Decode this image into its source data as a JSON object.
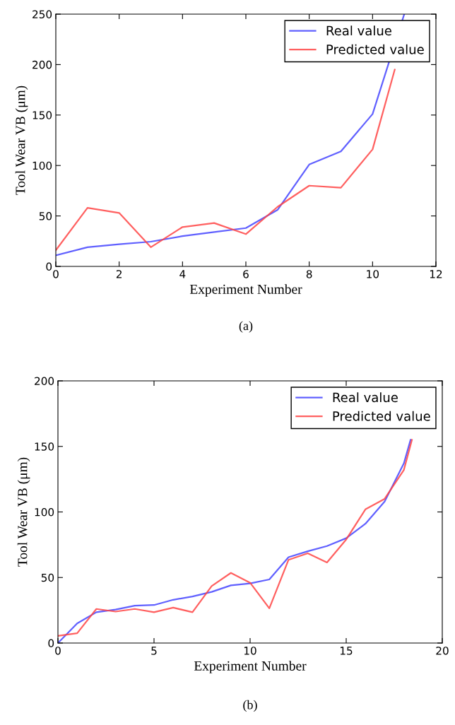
{
  "chart_data": [
    {
      "type": "line",
      "xlabel": "Experiment Number",
      "ylabel": "Tool Wear VB (μm)",
      "x": [
        0,
        1,
        2,
        3,
        4,
        5,
        6,
        7,
        8,
        9,
        10,
        11
      ],
      "series": [
        {
          "name": "Real value",
          "color": "#4444ff",
          "values": [
            11,
            19,
            22,
            24.5,
            30,
            34,
            38,
            56,
            101,
            114,
            151,
            250
          ]
        },
        {
          "name": "Predicted value",
          "color": "#ff4444",
          "x": [
            0,
            1,
            2,
            3,
            4,
            5,
            6,
            7,
            8,
            9,
            10,
            10.7
          ],
          "values": [
            16,
            58,
            53,
            19,
            39,
            43,
            32,
            59,
            80,
            78,
            116,
            195
          ]
        }
      ],
      "xlim": [
        0,
        12
      ],
      "xticks": [
        0,
        2,
        4,
        6,
        8,
        10,
        12
      ],
      "ylim": [
        0,
        250
      ],
      "yticks": [
        0,
        50,
        100,
        150,
        200,
        250
      ],
      "grid": false,
      "legend": "top right",
      "line_style": "solid",
      "marker": "none",
      "annotations": [
        "(a)"
      ]
    },
    {
      "type": "line",
      "xlabel": "Experiment Number",
      "ylabel": "Tool Wear VB (μm)",
      "series": [
        {
          "name": "Real value",
          "color": "#4444ff",
          "x": [
            0,
            1,
            2,
            3,
            4,
            5,
            6,
            7,
            8,
            9,
            10,
            11,
            12,
            13,
            14,
            15,
            16,
            17,
            18,
            18.35
          ],
          "values": [
            0,
            15,
            23.5,
            25.5,
            28.5,
            29,
            33,
            35.5,
            39,
            44,
            45.5,
            48.5,
            65.5,
            70,
            74,
            80,
            91,
            108,
            137,
            155
          ]
        },
        {
          "name": "Predicted value",
          "color": "#ff4444",
          "x": [
            0,
            1,
            2,
            3,
            4,
            5,
            6,
            7,
            8,
            9,
            10,
            11,
            12,
            13,
            14,
            15,
            16,
            17,
            18,
            18.42
          ],
          "values": [
            5.5,
            7.5,
            26,
            24,
            26,
            23.5,
            27,
            23.5,
            43.5,
            53.5,
            46,
            26.5,
            63.5,
            68.5,
            61.5,
            79,
            102,
            110,
            132,
            155
          ]
        }
      ],
      "xlim": [
        0,
        20
      ],
      "xticks": [
        0,
        5,
        10,
        15,
        20
      ],
      "ylim": [
        0,
        200
      ],
      "yticks": [
        0,
        50,
        100,
        150,
        200
      ],
      "grid": false,
      "legend": "top right",
      "line_style": "solid",
      "marker": "none",
      "annotations": [
        "(b)"
      ]
    }
  ]
}
